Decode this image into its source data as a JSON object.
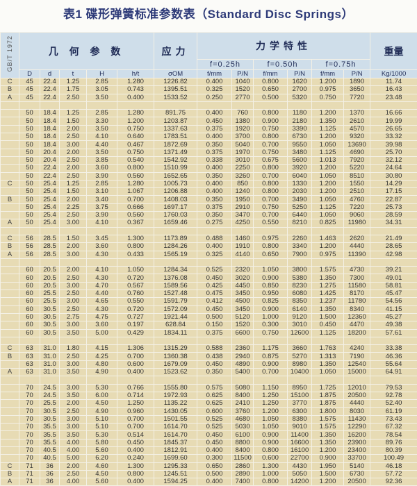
{
  "title": "表1 碟形弹簧标准参数表（Standard Disc Springs）",
  "header": {
    "standard": "GB/T 1972",
    "geometry": "几 何 参 数",
    "stress": "应力",
    "mechanics": "力学特性",
    "weight": "重量",
    "deflections": [
      "f=0.25h",
      "f=0.50h",
      "f=0.75h"
    ],
    "columns": [
      "D",
      "d",
      "t",
      "H",
      "h/t",
      "σOM",
      "f/mm",
      "P/N",
      "f/mm",
      "P/N",
      "f/mm",
      "P/N",
      "Kg/1000"
    ]
  },
  "groups": [
    {
      "rows": [
        [
          "C",
          "45",
          "22.4",
          "1.25",
          "2.85",
          "1.280",
          "1226.82",
          "0.400",
          "1040",
          "0.800",
          "1620",
          "1.200",
          "1890",
          "11.74"
        ],
        [
          "B",
          "45",
          "22.4",
          "1.75",
          "3.05",
          "0.743",
          "1395.51",
          "0.325",
          "1520",
          "0.650",
          "2700",
          "0.975",
          "3650",
          "16.43"
        ],
        [
          "A",
          "45",
          "22.4",
          "2.50",
          "3.50",
          "0.400",
          "1533.52",
          "0.250",
          "2770",
          "0.500",
          "5320",
          "0.750",
          "7720",
          "23.48"
        ]
      ]
    },
    {
      "rows": [
        [
          "",
          "50",
          "18.4",
          "1.25",
          "2.85",
          "1.280",
          "891.75",
          "0.400",
          "760",
          "0.800",
          "1180",
          "1.200",
          "1370",
          "16.66"
        ],
        [
          "",
          "50",
          "18.4",
          "1.50",
          "3.30",
          "1.200",
          "1203.87",
          "0.450",
          "1380",
          "0.900",
          "2180",
          "1.350",
          "2610",
          "19.99"
        ],
        [
          "",
          "50",
          "18.4",
          "2.00",
          "3.50",
          "0.750",
          "1337.63",
          "0.375",
          "1920",
          "0.750",
          "3390",
          "1.125",
          "4570",
          "26.65"
        ],
        [
          "",
          "50",
          "18.4",
          "2.50",
          "4.10",
          "0.640",
          "1783.51",
          "0.400",
          "3700",
          "0.800",
          "6730",
          "1.200",
          "9320",
          "33.32"
        ],
        [
          "",
          "50",
          "18.4",
          "3.00",
          "4.40",
          "0.467",
          "1872.69",
          "0.350",
          "5040",
          "0.700",
          "9550",
          "1.050",
          "13690",
          "39.98"
        ],
        [
          "",
          "50",
          "20.4",
          "2.00",
          "3.50",
          "0.750",
          "1371.49",
          "0.375",
          "1970",
          "0.750",
          "3480",
          "1.125",
          "4690",
          "25.70"
        ],
        [
          "",
          "50",
          "20.4",
          "2.50",
          "3.85",
          "0.540",
          "1542.92",
          "0.338",
          "3010",
          "0.675",
          "5600",
          "1.013",
          "7920",
          "32.12"
        ],
        [
          "",
          "50",
          "22.4",
          "2.00",
          "3.60",
          "0.800",
          "1510.99",
          "0.400",
          "2250",
          "0.800",
          "3920",
          "1.200",
          "5220",
          "24.64"
        ],
        [
          "",
          "50",
          "22.4",
          "2.50",
          "3.90",
          "0.560",
          "1652.65",
          "0.350",
          "3260",
          "0.700",
          "6040",
          "1.050",
          "8510",
          "30.80"
        ],
        [
          "C",
          "50",
          "25.4",
          "1.25",
          "2.85",
          "1.280",
          "1005.73",
          "0.400",
          "850",
          "0.800",
          "1330",
          "1.200",
          "1550",
          "14.29"
        ],
        [
          "",
          "50",
          "25.4",
          "1.50",
          "3.10",
          "1.067",
          "1206.88",
          "0.400",
          "1240",
          "0.800",
          "2030",
          "1.200",
          "2510",
          "17.15"
        ],
        [
          "B",
          "50",
          "25.4",
          "2.00",
          "3.40",
          "0.700",
          "1408.03",
          "0.350",
          "1950",
          "0.700",
          "3490",
          "1.050",
          "4760",
          "22.87"
        ],
        [
          "",
          "50",
          "25.4",
          "2.25",
          "3.75",
          "0.666",
          "1697.17",
          "0.375",
          "2910",
          "0.750",
          "5250",
          "1.125",
          "7220",
          "25.73"
        ],
        [
          "",
          "50",
          "25.4",
          "2.50",
          "3.90",
          "0.560",
          "1760.03",
          "0.350",
          "3470",
          "0.700",
          "6440",
          "1.050",
          "9060",
          "28.59"
        ],
        [
          "A",
          "50",
          "25.4",
          "3.00",
          "4.10",
          "0.367",
          "1659.46",
          "0.275",
          "4250",
          "0.550",
          "8210",
          "0.825",
          "11980",
          "34.31"
        ]
      ]
    },
    {
      "rows": [
        [
          "C",
          "56",
          "28.5",
          "1.50",
          "3.45",
          "1.300",
          "1173.89",
          "0.488",
          "1460",
          "0.975",
          "2260",
          "1.463",
          "2620",
          "21.49"
        ],
        [
          "B",
          "56",
          "28.5",
          "2.00",
          "3.60",
          "0.800",
          "1284.26",
          "0.400",
          "1910",
          "0.800",
          "3340",
          "1.200",
          "4440",
          "28.65"
        ],
        [
          "A",
          "56",
          "28.5",
          "3.00",
          "4.30",
          "0.433",
          "1565.19",
          "0.325",
          "4140",
          "0.650",
          "7900",
          "0.975",
          "11390",
          "42.98"
        ]
      ]
    },
    {
      "rows": [
        [
          "",
          "60",
          "20.5",
          "2.00",
          "4.10",
          "1.050",
          "1284.34",
          "0.525",
          "2320",
          "1.050",
          "3800",
          "1.575",
          "4730",
          "39.21"
        ],
        [
          "",
          "60",
          "20.5",
          "2.50",
          "4.30",
          "0.720",
          "1376.08",
          "0.450",
          "3020",
          "0.900",
          "5380",
          "1.350",
          "7300",
          "49.01"
        ],
        [
          "",
          "60",
          "20.5",
          "3.00",
          "4.70",
          "0.567",
          "1589.56",
          "0.425",
          "4450",
          "0.850",
          "8230",
          "1.275",
          "11580",
          "58.81"
        ],
        [
          "",
          "60",
          "25.5",
          "2.50",
          "4.40",
          "0.760",
          "1527.48",
          "0.475",
          "3450",
          "0.950",
          "6080",
          "1.425",
          "8170",
          "45.47"
        ],
        [
          "",
          "60",
          "25.5",
          "3.00",
          "4.65",
          "0.550",
          "1591.79",
          "0.412",
          "4500",
          "0.825",
          "8350",
          "1.237",
          "11780",
          "54.56"
        ],
        [
          "",
          "60",
          "30.5",
          "2.50",
          "4.30",
          "0.720",
          "1572.09",
          "0.450",
          "3450",
          "0.900",
          "6140",
          "1.350",
          "8340",
          "41.15"
        ],
        [
          "",
          "60",
          "30.5",
          "2.75",
          "4.75",
          "0.727",
          "1921.44",
          "0.500",
          "5120",
          "1.000",
          "9120",
          "1.500",
          "12360",
          "45.27"
        ],
        [
          "",
          "60",
          "30.5",
          "3.00",
          "3.60",
          "0.197",
          "628.84",
          "0.150",
          "1520",
          "0.300",
          "3010",
          "0.450",
          "4470",
          "49.38"
        ],
        [
          "",
          "60",
          "30.5",
          "3.50",
          "5.00",
          "0.429",
          "1834.11",
          "0.375",
          "6600",
          "0.750",
          "12600",
          "1.125",
          "18200",
          "57.61"
        ]
      ]
    },
    {
      "rows": [
        [
          "C",
          "63",
          "31.0",
          "1.80",
          "4.15",
          "1.306",
          "1315.29",
          "0.588",
          "2360",
          "1.175",
          "3660",
          "1.763",
          "4240",
          "33.38"
        ],
        [
          "B",
          "63",
          "31.0",
          "2.50",
          "4.25",
          "0.700",
          "1360.38",
          "0.438",
          "2940",
          "0.875",
          "5270",
          "1.313",
          "7190",
          "46.36"
        ],
        [
          "",
          "63",
          "31.0",
          "3.00",
          "4.80",
          "0.600",
          "1679.09",
          "0.450",
          "4890",
          "0.900",
          "8980",
          "1.350",
          "12540",
          "55.64"
        ],
        [
          "A",
          "63",
          "31.0",
          "3.50",
          "4.90",
          "0.400",
          "1523.62",
          "0.350",
          "5400",
          "0.700",
          "10400",
          "1.050",
          "15000",
          "64.91"
        ]
      ]
    },
    {
      "rows": [
        [
          "",
          "70",
          "24.5",
          "3.00",
          "5.30",
          "0.766",
          "1555.80",
          "0.575",
          "5080",
          "1.150",
          "8950",
          "1.725",
          "12010",
          "79.53"
        ],
        [
          "",
          "70",
          "24.5",
          "3.50",
          "6.00",
          "0.714",
          "1972.93",
          "0.625",
          "8400",
          "1.250",
          "15100",
          "1.875",
          "20500",
          "92.78"
        ],
        [
          "",
          "70",
          "25.5",
          "2.00",
          "4.50",
          "1.250",
          "1135.22",
          "0.625",
          "2410",
          "1.250",
          "3770",
          "1.875",
          "4440",
          "52.40"
        ],
        [
          "",
          "70",
          "30.5",
          "2.50",
          "4.90",
          "0.960",
          "1430.05",
          "0.600",
          "3760",
          "1.200",
          "6300",
          "1.800",
          "8030",
          "61.19"
        ],
        [
          "",
          "70",
          "30.5",
          "3.00",
          "5.10",
          "0.700",
          "1501.55",
          "0.525",
          "4680",
          "1.050",
          "8380",
          "1.575",
          "11430",
          "73.43"
        ],
        [
          "",
          "70",
          "35.5",
          "3.00",
          "5.10",
          "0.700",
          "1614.70",
          "0.525",
          "5030",
          "1.050",
          "9010",
          "1.575",
          "12290",
          "67.32"
        ],
        [
          "",
          "70",
          "35.5",
          "3.50",
          "5.30",
          "0.514",
          "1614.70",
          "0.450",
          "6100",
          "0.900",
          "11400",
          "1.350",
          "16200",
          "78.54"
        ],
        [
          "",
          "70",
          "35.5",
          "4.00",
          "5.80",
          "0.450",
          "1845.37",
          "0.450",
          "8800",
          "0.900",
          "16600",
          "1.350",
          "23900",
          "89.76"
        ],
        [
          "",
          "70",
          "40.5",
          "4.00",
          "5.60",
          "0.400",
          "1812.91",
          "0.400",
          "8400",
          "0.800",
          "16100",
          "1.200",
          "23400",
          "80.39"
        ],
        [
          "",
          "70",
          "40.5",
          "5.00",
          "6.20",
          "0.240",
          "1699.60",
          "0.300",
          "11500",
          "0.600",
          "22700",
          "0.900",
          "33700",
          "100.49"
        ],
        [
          "C",
          "71",
          "36",
          "2.00",
          "4.60",
          "1.300",
          "1295.33",
          "0.650",
          "2860",
          "1.300",
          "4430",
          "1.950",
          "5140",
          "46.18"
        ],
        [
          "B",
          "71",
          "36",
          "2.50",
          "4.50",
          "0.800",
          "1245.51",
          "0.500",
          "2890",
          "1.000",
          "5050",
          "1.500",
          "6730",
          "57.72"
        ],
        [
          "A",
          "71",
          "36",
          "4.00",
          "5.60",
          "0.400",
          "1594.25",
          "0.400",
          "7400",
          "0.800",
          "14200",
          "1.200",
          "20500",
          "92.36"
        ]
      ]
    }
  ]
}
